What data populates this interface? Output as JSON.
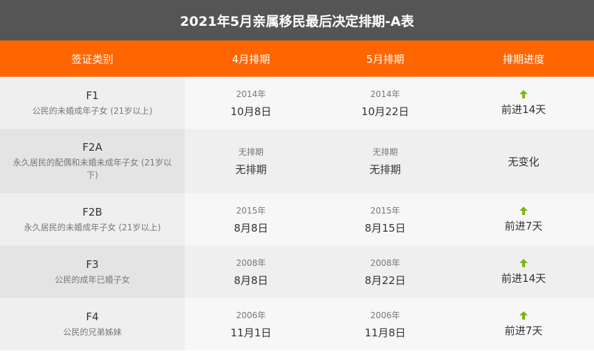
{
  "title": "2021年5月亲属移民最后决定排期-A表",
  "headers": [
    "签证类别",
    "4月排期",
    "5月排期",
    "排期进度"
  ],
  "accent_color": "#ff6600",
  "rows": [
    {
      "code": "F1",
      "desc": "公民的未婚成年子女 (21岁以上)",
      "apr_year": "2014年",
      "apr_date": "10月8日",
      "may_year": "2014年",
      "may_date": "10月22日",
      "progress": "前进14天",
      "icon": "arrow-up-icon"
    },
    {
      "code": "F2A",
      "desc": "永久居民的配偶和未婚未成年子女 (21岁以下)",
      "apr_year": "无排期",
      "apr_date": "无排期",
      "may_year": "无排期",
      "may_date": "无排期",
      "progress": "无变化",
      "icon": ""
    },
    {
      "code": "F2B",
      "desc": "永久居民的未婚成年子女 (21岁以上)",
      "apr_year": "2015年",
      "apr_date": "8月8日",
      "may_year": "2015年",
      "may_date": "8月15日",
      "progress": "前进7天",
      "icon": "arrow-up-icon"
    },
    {
      "code": "F3",
      "desc": "公民的成年已婚子女",
      "apr_year": "2008年",
      "apr_date": "8月8日",
      "may_year": "2008年",
      "may_date": "8月22日",
      "progress": "前进14天",
      "icon": "arrow-up-icon"
    },
    {
      "code": "F4",
      "desc": "公民的兄弟姊妹",
      "apr_year": "2006年",
      "apr_date": "11月1日",
      "may_year": "2006年",
      "may_date": "11月8日",
      "progress": "前进7天",
      "icon": "arrow-up-icon"
    }
  ]
}
